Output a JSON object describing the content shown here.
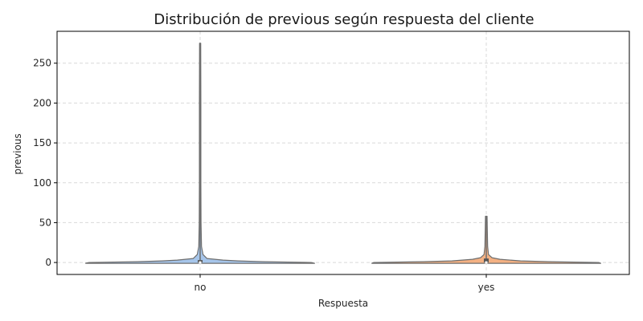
{
  "chart_data": {
    "type": "violin",
    "title": "Distribución de previous según respuesta del cliente",
    "xlabel": "Respuesta",
    "ylabel": "previous",
    "categories": [
      "no",
      "yes"
    ],
    "ylim": [
      -15,
      290
    ],
    "yticks": [
      0,
      50,
      100,
      150,
      200,
      250
    ],
    "grid": true,
    "colors": {
      "no": "#a6c5ea",
      "yes": "#f4b183",
      "outline": "#6e6e6e",
      "grid": "#d9d9d9"
    },
    "series": [
      {
        "category": "no",
        "min": 0,
        "max": 275,
        "median": 0,
        "q1": 0,
        "q3": 0,
        "density": [
          [
            -1,
            1.0
          ],
          [
            0,
            0.97
          ],
          [
            1,
            0.55
          ],
          [
            2,
            0.33
          ],
          [
            3,
            0.2
          ],
          [
            5,
            0.06
          ],
          [
            10,
            0.025
          ],
          [
            20,
            0.012
          ],
          [
            50,
            0.008
          ],
          [
            100,
            0.006
          ],
          [
            200,
            0.006
          ],
          [
            275,
            0.005
          ]
        ]
      },
      {
        "category": "yes",
        "min": 0,
        "max": 58,
        "median": 0,
        "q1": 0,
        "q3": 5,
        "density": [
          [
            -1,
            1.0
          ],
          [
            0,
            0.98
          ],
          [
            1,
            0.55
          ],
          [
            2,
            0.3
          ],
          [
            4,
            0.12
          ],
          [
            6,
            0.05
          ],
          [
            10,
            0.02
          ],
          [
            20,
            0.012
          ],
          [
            40,
            0.009
          ],
          [
            58,
            0.007
          ]
        ]
      }
    ]
  }
}
